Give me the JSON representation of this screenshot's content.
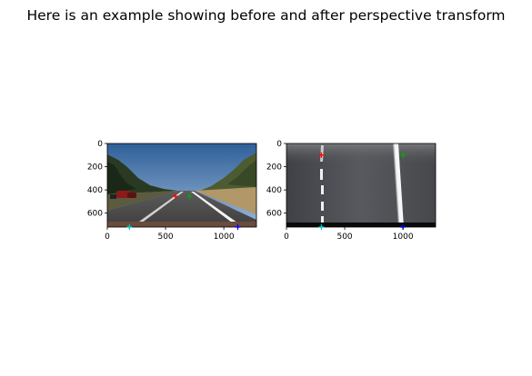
{
  "figure": {
    "suptitle": "Here is an example showing before and after perspective transform"
  },
  "chart_data": [
    {
      "type": "image",
      "panel": "before",
      "xlim": [
        0,
        1280
      ],
      "ylim": [
        720,
        0
      ],
      "xticks": [
        0,
        500,
        1000
      ],
      "yticks": [
        0,
        200,
        400,
        600
      ],
      "points": [
        {
          "x": 585,
          "y": 455,
          "color": "#ff0000",
          "marker": "+"
        },
        {
          "x": 705,
          "y": 455,
          "color": "#00aa00",
          "marker": "+"
        },
        {
          "x": 1120,
          "y": 720,
          "color": "#0000ff",
          "marker": "+"
        },
        {
          "x": 190,
          "y": 720,
          "color": "#00c8c8",
          "marker": "+"
        }
      ]
    },
    {
      "type": "image",
      "panel": "after",
      "xlim": [
        0,
        1280
      ],
      "ylim": [
        720,
        0
      ],
      "xticks": [
        0,
        500,
        1000
      ],
      "yticks": [
        0,
        200,
        400,
        600
      ],
      "points": [
        {
          "x": 300,
          "y": 100,
          "color": "#ff0000",
          "marker": "+"
        },
        {
          "x": 1000,
          "y": 100,
          "color": "#00aa00",
          "marker": "+"
        },
        {
          "x": 1000,
          "y": 720,
          "color": "#0000ff",
          "marker": "+"
        },
        {
          "x": 300,
          "y": 720,
          "color": "#00c8c8",
          "marker": "+"
        }
      ]
    }
  ]
}
